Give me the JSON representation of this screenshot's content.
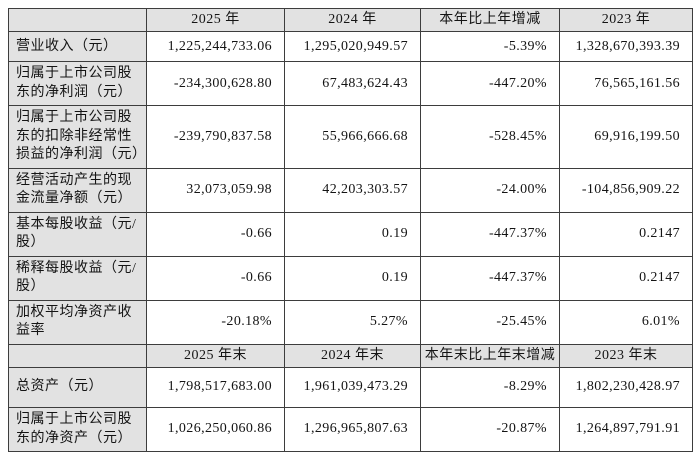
{
  "table": {
    "title": "financial-summary",
    "sections": [
      {
        "header": [
          "",
          "2025 年",
          "2024 年",
          "本年比上年增减",
          "2023 年"
        ],
        "rows": [
          {
            "label": "营业收入（元）",
            "values": [
              "1,225,244,733.06",
              "1,295,020,949.57",
              "-5.39%",
              "1,328,670,393.39"
            ]
          },
          {
            "label": "归属于上市公司股东的净利润（元）",
            "values": [
              "-234,300,628.80",
              "67,483,624.43",
              "-447.20%",
              "76,565,161.56"
            ]
          },
          {
            "label": "归属于上市公司股东的扣除非经常性损益的净利润（元）",
            "values": [
              "-239,790,837.58",
              "55,966,666.68",
              "-528.45%",
              "69,916,199.50"
            ]
          },
          {
            "label": "经营活动产生的现金流量净额（元）",
            "values": [
              "32,073,059.98",
              "42,203,303.57",
              "-24.00%",
              "-104,856,909.22"
            ]
          },
          {
            "label": "基本每股收益（元/股）",
            "values": [
              "-0.66",
              "0.19",
              "-447.37%",
              "0.2147"
            ]
          },
          {
            "label": "稀释每股收益（元/股）",
            "values": [
              "-0.66",
              "0.19",
              "-447.37%",
              "0.2147"
            ]
          },
          {
            "label": "加权平均净资产收益率",
            "values": [
              "-20.18%",
              "5.27%",
              "-25.45%",
              "6.01%"
            ]
          }
        ]
      },
      {
        "header": [
          "",
          "2025 年末",
          "2024 年末",
          "本年末比上年末增减",
          "2023 年末"
        ],
        "rows": [
          {
            "label": "总资产（元）",
            "values": [
              "1,798,517,683.00",
              "1,961,039,473.29",
              "-8.29%",
              "1,802,230,428.97"
            ]
          },
          {
            "label": "归属于上市公司股东的净资产（元）",
            "values": [
              "1,026,250,060.86",
              "1,296,965,807.63",
              "-20.87%",
              "1,264,897,791.91"
            ]
          }
        ]
      }
    ],
    "colors": {
      "header_bg": "#e2e2e2",
      "label_bg": "#e2e2e2",
      "cell_bg": "#ffffff",
      "border": "#3d3d3d",
      "text": "#141414"
    }
  }
}
